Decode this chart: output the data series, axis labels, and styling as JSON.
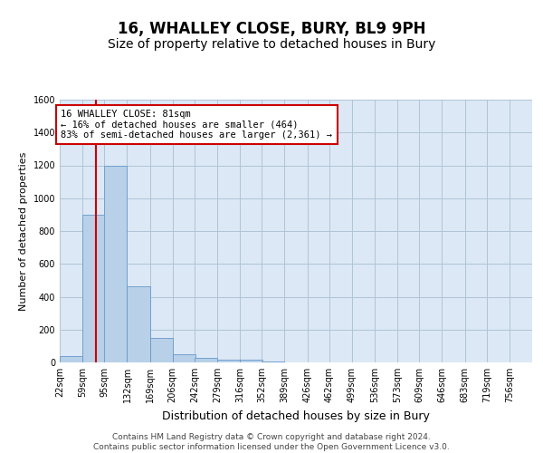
{
  "title": "16, WHALLEY CLOSE, BURY, BL9 9PH",
  "subtitle": "Size of property relative to detached houses in Bury",
  "xlabel": "Distribution of detached houses by size in Bury",
  "ylabel": "Number of detached properties",
  "bins": [
    22,
    59,
    95,
    132,
    169,
    206,
    242,
    279,
    316,
    352,
    389,
    426,
    462,
    499,
    536,
    573,
    609,
    646,
    683,
    719,
    756
  ],
  "bin_labels": [
    "22sqm",
    "59sqm",
    "95sqm",
    "132sqm",
    "169sqm",
    "206sqm",
    "242sqm",
    "279sqm",
    "316sqm",
    "352sqm",
    "389sqm",
    "426sqm",
    "462sqm",
    "499sqm",
    "536sqm",
    "573sqm",
    "609sqm",
    "646sqm",
    "683sqm",
    "719sqm",
    "756sqm"
  ],
  "counts": [
    40,
    900,
    1200,
    465,
    150,
    50,
    25,
    15,
    15,
    5,
    0,
    0,
    0,
    0,
    0,
    0,
    0,
    0,
    0,
    0
  ],
  "bar_color": "#b8d0e8",
  "bar_edge_color": "#6699cc",
  "property_size": 81,
  "property_line_color": "#cc0000",
  "annotation_text": "16 WHALLEY CLOSE: 81sqm\n← 16% of detached houses are smaller (464)\n83% of semi-detached houses are larger (2,361) →",
  "annotation_box_color": "#ffffff",
  "annotation_box_edge_color": "#cc0000",
  "ylim": [
    0,
    1600
  ],
  "yticks": [
    0,
    200,
    400,
    600,
    800,
    1000,
    1200,
    1400,
    1600
  ],
  "background_color": "#ffffff",
  "plot_bg_color": "#dce8f5",
  "grid_color": "#b0c4d8",
  "footer_text": "Contains HM Land Registry data © Crown copyright and database right 2024.\nContains public sector information licensed under the Open Government Licence v3.0.",
  "title_fontsize": 12,
  "subtitle_fontsize": 10,
  "ylabel_fontsize": 8,
  "xlabel_fontsize": 9,
  "tick_fontsize": 7,
  "footer_fontsize": 6.5,
  "annot_fontsize": 7.5
}
